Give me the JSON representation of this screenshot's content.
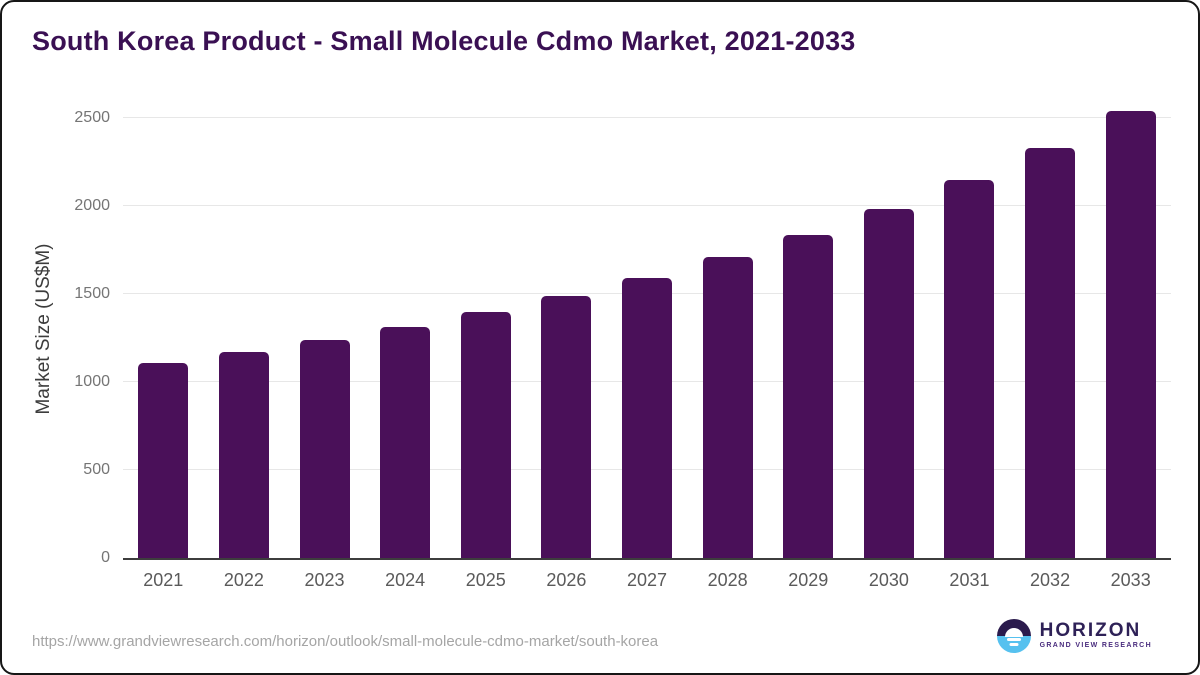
{
  "header": {
    "title": "South Korea Product - Small Molecule Cdmo Market, 2021-2033"
  },
  "chart_data": {
    "type": "bar",
    "title": "South Korea Product - Small Molecule Cdmo Market, 2021-2033",
    "categories": [
      "2021",
      "2022",
      "2023",
      "2024",
      "2025",
      "2026",
      "2027",
      "2028",
      "2029",
      "2030",
      "2031",
      "2032",
      "2033"
    ],
    "values": [
      1110,
      1170,
      1240,
      1315,
      1395,
      1490,
      1590,
      1710,
      1835,
      1985,
      2145,
      2330,
      2540
    ],
    "xlabel": "",
    "ylabel": "Market Size (US$M)",
    "yticks": [
      0,
      500,
      1000,
      1500,
      2000,
      2500
    ],
    "ylim": [
      0,
      2630
    ],
    "grid": "horizontal",
    "legend": "none",
    "bar_color": "#4a1059"
  },
  "footer": {
    "source_url": "https://www.grandviewresearch.com/horizon/outlook/small-molecule-cdmo-market/south-korea",
    "logo": {
      "icon": "horizon-sunrise-icon",
      "name": "HORIZON",
      "subtitle": "GRAND VIEW RESEARCH"
    }
  },
  "colors": {
    "title": "#3a1053",
    "bar": "#4a1059",
    "gridline": "#e7e7e7",
    "axis_line": "#3d3d3d",
    "y_tick_label": "#757575",
    "x_tick_label": "#5a5a5a",
    "url_text": "#a5a5a5",
    "logo_dark": "#2b1b4d",
    "logo_blue": "#56c1ef"
  }
}
